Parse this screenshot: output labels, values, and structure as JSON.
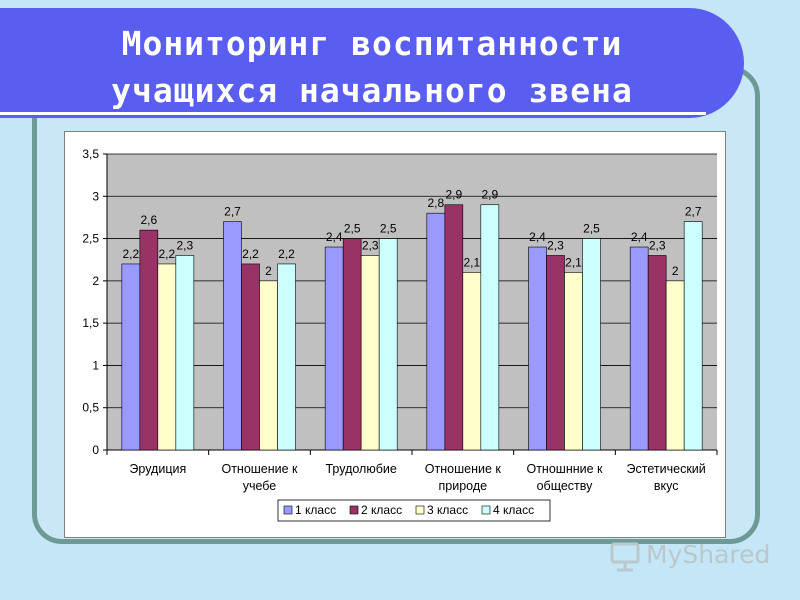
{
  "title": {
    "line1": "Мониторинг воспитанности",
    "line2": "учащихся начального звена"
  },
  "watermark": {
    "text": "MyShared"
  },
  "colors": {
    "background": "#c4e6f6",
    "title_bar": "#5a5ef0",
    "plot_area": "#c0c0c0",
    "series": [
      "#9999ff",
      "#993366",
      "#ffffcc",
      "#ccffff"
    ]
  },
  "chart_data": {
    "type": "bar",
    "categories": [
      [
        "Эрудиция"
      ],
      [
        "Отношение к",
        "учебе"
      ],
      [
        "Трудолюбие"
      ],
      [
        "Отношение к",
        "природе"
      ],
      [
        "Отношнние к",
        "обществу"
      ],
      [
        "Эстетический",
        "вкус"
      ]
    ],
    "series": [
      {
        "name": "1 класс",
        "values": [
          2.2,
          2.7,
          2.4,
          2.8,
          2.4,
          2.4
        ]
      },
      {
        "name": "2 класс",
        "values": [
          2.6,
          2.2,
          2.5,
          2.9,
          2.3,
          2.3
        ]
      },
      {
        "name": "3 класс",
        "values": [
          2.2,
          2.0,
          2.3,
          2.1,
          2.1,
          2.0
        ]
      },
      {
        "name": "4 класс",
        "values": [
          2.3,
          2.2,
          2.5,
          2.9,
          2.5,
          2.7
        ]
      }
    ],
    "ylim": [
      0,
      3.5
    ],
    "yticks": [
      "0",
      "0,5",
      "1",
      "1,5",
      "2",
      "2,5",
      "3",
      "3,5"
    ],
    "ytick_values": [
      0,
      0.5,
      1,
      1.5,
      2,
      2.5,
      3,
      3.5
    ],
    "grid": true,
    "legend": "bottom",
    "data_labels": true
  }
}
